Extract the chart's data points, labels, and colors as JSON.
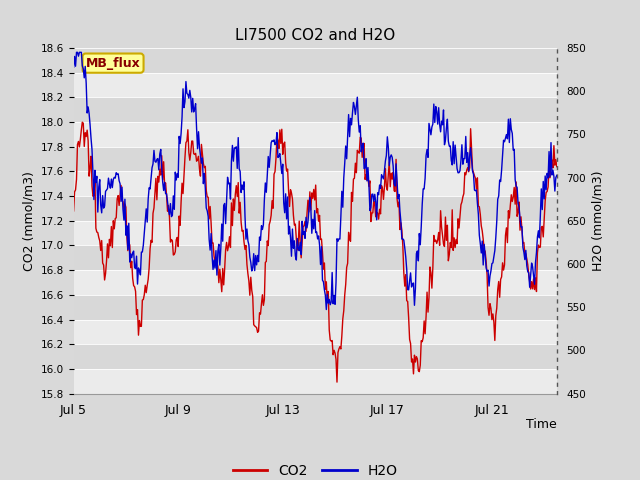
{
  "title": "LI7500 CO2 and H2O",
  "xlabel": "Time",
  "ylabel_left": "CO2 (mmol/m3)",
  "ylabel_right": "H2O (mmol/m3)",
  "ylim_left": [
    15.8,
    18.6
  ],
  "ylim_right": [
    450,
    850
  ],
  "yticks_left": [
    15.8,
    16.0,
    16.2,
    16.4,
    16.6,
    16.8,
    17.0,
    17.2,
    17.4,
    17.6,
    17.8,
    18.0,
    18.2,
    18.4,
    18.6
  ],
  "yticks_right": [
    450,
    500,
    550,
    600,
    650,
    700,
    750,
    800,
    850
  ],
  "xtick_labels": [
    "Jul 5",
    "Jul 9",
    "Jul 13",
    "Jul 17",
    "Jul 21"
  ],
  "xtick_positions": [
    0,
    4,
    8,
    12,
    16
  ],
  "xlim": [
    0,
    18.5
  ],
  "co2_color": "#cc0000",
  "h2o_color": "#0000cc",
  "fig_facecolor": "#d9d9d9",
  "plot_facecolor": "#e8e8e8",
  "band_light": "#ebebeb",
  "band_dark": "#d8d8d8",
  "mb_flux_bg": "#ffff99",
  "mb_flux_border": "#ccaa00",
  "mb_flux_text": "#880000",
  "legend_co2": "CO2",
  "legend_h2o": "H2O",
  "linewidth": 1.0
}
